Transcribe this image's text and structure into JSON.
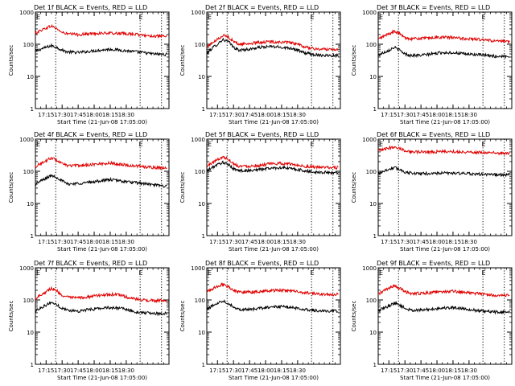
{
  "panel_label_suffix": "BLACK = Events, RED = LLD",
  "colors": {
    "events": "#000000",
    "lld": "#e00000",
    "axis": "#000000"
  },
  "chart_data": [
    {
      "type": "line",
      "title": "Det 1f BLACK = Events, RED = LLD",
      "xlabel": "Start Time (21-Jun-08 17:05:00)",
      "ylabel": "Counts/sec",
      "y_scale": "log",
      "ylim": [
        1,
        1000
      ],
      "x_tick_labels": [
        "17:15",
        "17:30",
        "17:45",
        "18:00",
        "18:15",
        "18:30"
      ],
      "y_tick_labels": [
        "1",
        "10",
        "100",
        "1000"
      ],
      "markers": [
        "E",
        "E"
      ],
      "series": [
        {
          "name": "",
          "role": "events",
          "x_min": [
            0,
            10,
            15,
            20,
            25,
            30,
            40,
            50,
            60,
            70,
            80,
            90,
            100,
            110,
            120
          ],
          "y": [
            60,
            80,
            90,
            80,
            65,
            58,
            55,
            60,
            65,
            70,
            65,
            60,
            55,
            50,
            48
          ]
        },
        {
          "name": "",
          "role": "lld",
          "x_min": [
            0,
            10,
            15,
            20,
            25,
            30,
            40,
            50,
            60,
            70,
            80,
            90,
            100,
            110,
            120
          ],
          "y": [
            220,
            320,
            370,
            300,
            230,
            210,
            200,
            210,
            220,
            220,
            215,
            210,
            190,
            180,
            175
          ]
        }
      ]
    },
    {
      "type": "line",
      "title": "Det 2f BLACK = Events, RED = LLD",
      "xlabel": "Start Time (21-Jun-08 17:05:00)",
      "ylabel": "Counts/sec",
      "y_scale": "log",
      "ylim": [
        1,
        1000
      ],
      "x_tick_labels": [
        "17:15",
        "17:30",
        "17:45",
        "18:00",
        "18:15",
        "18:30"
      ],
      "y_tick_labels": [
        "1",
        "10",
        "100",
        "1000"
      ],
      "markers": [
        "E",
        "E"
      ],
      "series": [
        {
          "name": "",
          "role": "events",
          "x_min": [
            0,
            10,
            15,
            20,
            25,
            30,
            40,
            50,
            60,
            70,
            80,
            90,
            100,
            110,
            120
          ],
          "y": [
            50,
            100,
            140,
            120,
            80,
            65,
            70,
            80,
            85,
            80,
            75,
            55,
            48,
            45,
            45
          ]
        },
        {
          "name": "",
          "role": "lld",
          "x_min": [
            0,
            10,
            15,
            20,
            25,
            30,
            40,
            50,
            60,
            70,
            80,
            90,
            100,
            110,
            120
          ],
          "y": [
            80,
            140,
            190,
            170,
            120,
            100,
            105,
            115,
            120,
            115,
            110,
            85,
            72,
            70,
            70
          ]
        }
      ]
    },
    {
      "type": "line",
      "title": "Det 3f BLACK = Events, RED = LLD",
      "xlabel": "Start Time (21-Jun-08 17:05:00)",
      "ylabel": "Counts/sec",
      "y_scale": "log",
      "ylim": [
        1,
        1000
      ],
      "x_tick_labels": [
        "17:15",
        "17:30",
        "17:45",
        "18:00",
        "18:15",
        "18:30"
      ],
      "y_tick_labels": [
        "1",
        "10",
        "100",
        "1000"
      ],
      "markers": [
        "E",
        "E"
      ],
      "series": [
        {
          "name": "",
          "role": "events",
          "x_min": [
            0,
            10,
            15,
            20,
            25,
            30,
            40,
            50,
            60,
            70,
            80,
            90,
            100,
            110,
            120
          ],
          "y": [
            45,
            65,
            80,
            65,
            50,
            45,
            45,
            50,
            55,
            55,
            50,
            48,
            45,
            42,
            42
          ]
        },
        {
          "name": "",
          "role": "lld",
          "x_min": [
            0,
            10,
            15,
            20,
            25,
            30,
            40,
            50,
            60,
            70,
            80,
            90,
            100,
            110,
            120
          ],
          "y": [
            140,
            210,
            250,
            210,
            160,
            150,
            150,
            160,
            165,
            160,
            150,
            145,
            135,
            125,
            120
          ]
        }
      ]
    },
    {
      "type": "line",
      "title": "Det 4f BLACK = Events, RED = LLD",
      "xlabel": "Start Time (21-Jun-08 17:05:00)",
      "ylabel": "Counts/sec",
      "y_scale": "log",
      "ylim": [
        1,
        1000
      ],
      "x_tick_labels": [
        "17:15",
        "17:30",
        "17:45",
        "18:00",
        "18:15",
        "18:30"
      ],
      "y_tick_labels": [
        "1",
        "10",
        "100",
        "1000"
      ],
      "markers": [
        "E",
        "E"
      ],
      "series": [
        {
          "name": "",
          "role": "events",
          "x_min": [
            0,
            10,
            15,
            20,
            25,
            30,
            40,
            50,
            60,
            70,
            80,
            90,
            100,
            110,
            120
          ],
          "y": [
            40,
            60,
            75,
            65,
            50,
            40,
            42,
            45,
            50,
            55,
            50,
            45,
            42,
            38,
            35
          ]
        },
        {
          "name": "",
          "role": "lld",
          "x_min": [
            0,
            10,
            15,
            20,
            25,
            30,
            40,
            50,
            60,
            70,
            80,
            90,
            100,
            110,
            120
          ],
          "y": [
            140,
            210,
            260,
            220,
            170,
            150,
            150,
            160,
            170,
            180,
            165,
            150,
            140,
            130,
            125
          ]
        }
      ]
    },
    {
      "type": "line",
      "title": "Det 5f BLACK = Events, RED = LLD",
      "xlabel": "Start Time (21-Jun-08 17:05:00)",
      "ylabel": "Counts/sec",
      "y_scale": "log",
      "ylim": [
        1,
        1000
      ],
      "x_tick_labels": [
        "17:15",
        "17:30",
        "17:45",
        "18:00",
        "18:15",
        "18:30"
      ],
      "y_tick_labels": [
        "1",
        "10",
        "100",
        "1000"
      ],
      "markers": [
        "E",
        "E"
      ],
      "series": [
        {
          "name": "",
          "role": "events",
          "x_min": [
            0,
            10,
            15,
            20,
            25,
            30,
            40,
            50,
            60,
            70,
            80,
            90,
            100,
            110,
            120
          ],
          "y": [
            100,
            160,
            190,
            160,
            120,
            105,
            105,
            115,
            125,
            130,
            120,
            105,
            95,
            92,
            90
          ]
        },
        {
          "name": "",
          "role": "lld",
          "x_min": [
            0,
            10,
            15,
            20,
            25,
            30,
            40,
            50,
            60,
            70,
            80,
            90,
            100,
            110,
            120
          ],
          "y": [
            140,
            230,
            280,
            240,
            170,
            145,
            145,
            155,
            170,
            175,
            165,
            145,
            135,
            130,
            130
          ]
        }
      ]
    },
    {
      "type": "line",
      "title": "Det 6f BLACK = Events, RED = LLD",
      "xlabel": "Start Time (21-Jun-08 17:05:00)",
      "ylabel": "Counts/sec",
      "y_scale": "log",
      "ylim": [
        1,
        1000
      ],
      "x_tick_labels": [
        "17:15",
        "17:30",
        "17:45",
        "18:00",
        "18:15",
        "18:30"
      ],
      "y_tick_labels": [
        "1",
        "10",
        "100",
        "1000"
      ],
      "markers": [
        "E",
        "E"
      ],
      "series": [
        {
          "name": "",
          "role": "events",
          "x_min": [
            0,
            10,
            15,
            20,
            25,
            30,
            40,
            50,
            60,
            70,
            80,
            90,
            100,
            110,
            120
          ],
          "y": [
            85,
            115,
            130,
            115,
            95,
            88,
            85,
            85,
            88,
            88,
            85,
            82,
            80,
            78,
            78
          ]
        },
        {
          "name": "",
          "role": "lld",
          "x_min": [
            0,
            10,
            15,
            20,
            25,
            30,
            40,
            50,
            60,
            70,
            80,
            90,
            100,
            110,
            120
          ],
          "y": [
            420,
            530,
            580,
            520,
            440,
            410,
            400,
            400,
            410,
            410,
            400,
            390,
            380,
            370,
            360
          ]
        }
      ]
    },
    {
      "type": "line",
      "title": "Det 7f BLACK = Events, RED = LLD",
      "xlabel": "Start Time (21-Jun-08 17:05:00)",
      "ylabel": "Counts/sec",
      "y_scale": "log",
      "ylim": [
        1,
        1000
      ],
      "x_tick_labels": [
        "17:15",
        "17:30",
        "17:45",
        "18:00",
        "18:15",
        "18:30"
      ],
      "y_tick_labels": [
        "1",
        "10",
        "100",
        "1000"
      ],
      "markers": [
        "E",
        "E"
      ],
      "series": [
        {
          "name": "",
          "role": "events",
          "x_min": [
            0,
            10,
            15,
            20,
            25,
            30,
            40,
            50,
            60,
            70,
            80,
            90,
            100,
            110,
            120
          ],
          "y": [
            45,
            70,
            85,
            70,
            55,
            48,
            45,
            50,
            55,
            58,
            55,
            45,
            40,
            38,
            38
          ]
        },
        {
          "name": "",
          "role": "lld",
          "x_min": [
            0,
            10,
            15,
            20,
            25,
            30,
            40,
            50,
            60,
            70,
            80,
            90,
            100,
            110,
            120
          ],
          "y": [
            110,
            180,
            230,
            190,
            140,
            120,
            115,
            125,
            140,
            150,
            140,
            110,
            100,
            95,
            95
          ]
        }
      ]
    },
    {
      "type": "line",
      "title": "Det 8f BLACK = Events, RED = LLD",
      "xlabel": "Start Time (21-Jun-08 17:05:00)",
      "ylabel": "Counts/sec",
      "y_scale": "log",
      "ylim": [
        1,
        1000
      ],
      "x_tick_labels": [
        "17:15",
        "17:30",
        "17:45",
        "18:00",
        "18:15",
        "18:30"
      ],
      "y_tick_labels": [
        "1",
        "10",
        "100",
        "1000"
      ],
      "markers": [
        "E",
        "E"
      ],
      "series": [
        {
          "name": "",
          "role": "events",
          "x_min": [
            0,
            10,
            15,
            20,
            25,
            30,
            40,
            50,
            60,
            70,
            80,
            90,
            100,
            110,
            120
          ],
          "y": [
            50,
            80,
            95,
            80,
            60,
            52,
            50,
            55,
            60,
            62,
            58,
            52,
            48,
            45,
            45
          ]
        },
        {
          "name": "",
          "role": "lld",
          "x_min": [
            0,
            10,
            15,
            20,
            25,
            30,
            40,
            50,
            60,
            70,
            80,
            90,
            100,
            110,
            120
          ],
          "y": [
            180,
            260,
            310,
            260,
            200,
            180,
            175,
            185,
            195,
            200,
            190,
            170,
            155,
            150,
            150
          ]
        }
      ]
    },
    {
      "type": "line",
      "title": "Det 9f BLACK = Events, RED = LLD",
      "xlabel": "Start Time (21-Jun-08 17:05:00)",
      "ylabel": "Counts/sec",
      "y_scale": "log",
      "ylim": [
        1,
        1000
      ],
      "x_tick_labels": [
        "17:15",
        "17:30",
        "17:45",
        "18:00",
        "18:15",
        "18:30"
      ],
      "y_tick_labels": [
        "1",
        "10",
        "100",
        "1000"
      ],
      "markers": [
        "E",
        "E"
      ],
      "series": [
        {
          "name": "",
          "role": "events",
          "x_min": [
            0,
            10,
            15,
            20,
            25,
            30,
            40,
            50,
            60,
            70,
            80,
            90,
            100,
            110,
            120
          ],
          "y": [
            45,
            65,
            80,
            70,
            55,
            48,
            48,
            52,
            56,
            58,
            54,
            48,
            44,
            42,
            42
          ]
        },
        {
          "name": "",
          "role": "lld",
          "x_min": [
            0,
            10,
            15,
            20,
            25,
            30,
            40,
            50,
            60,
            70,
            80,
            90,
            100,
            110,
            120
          ],
          "y": [
            150,
            230,
            270,
            230,
            180,
            160,
            160,
            170,
            180,
            185,
            175,
            160,
            150,
            140,
            140
          ]
        }
      ]
    }
  ]
}
